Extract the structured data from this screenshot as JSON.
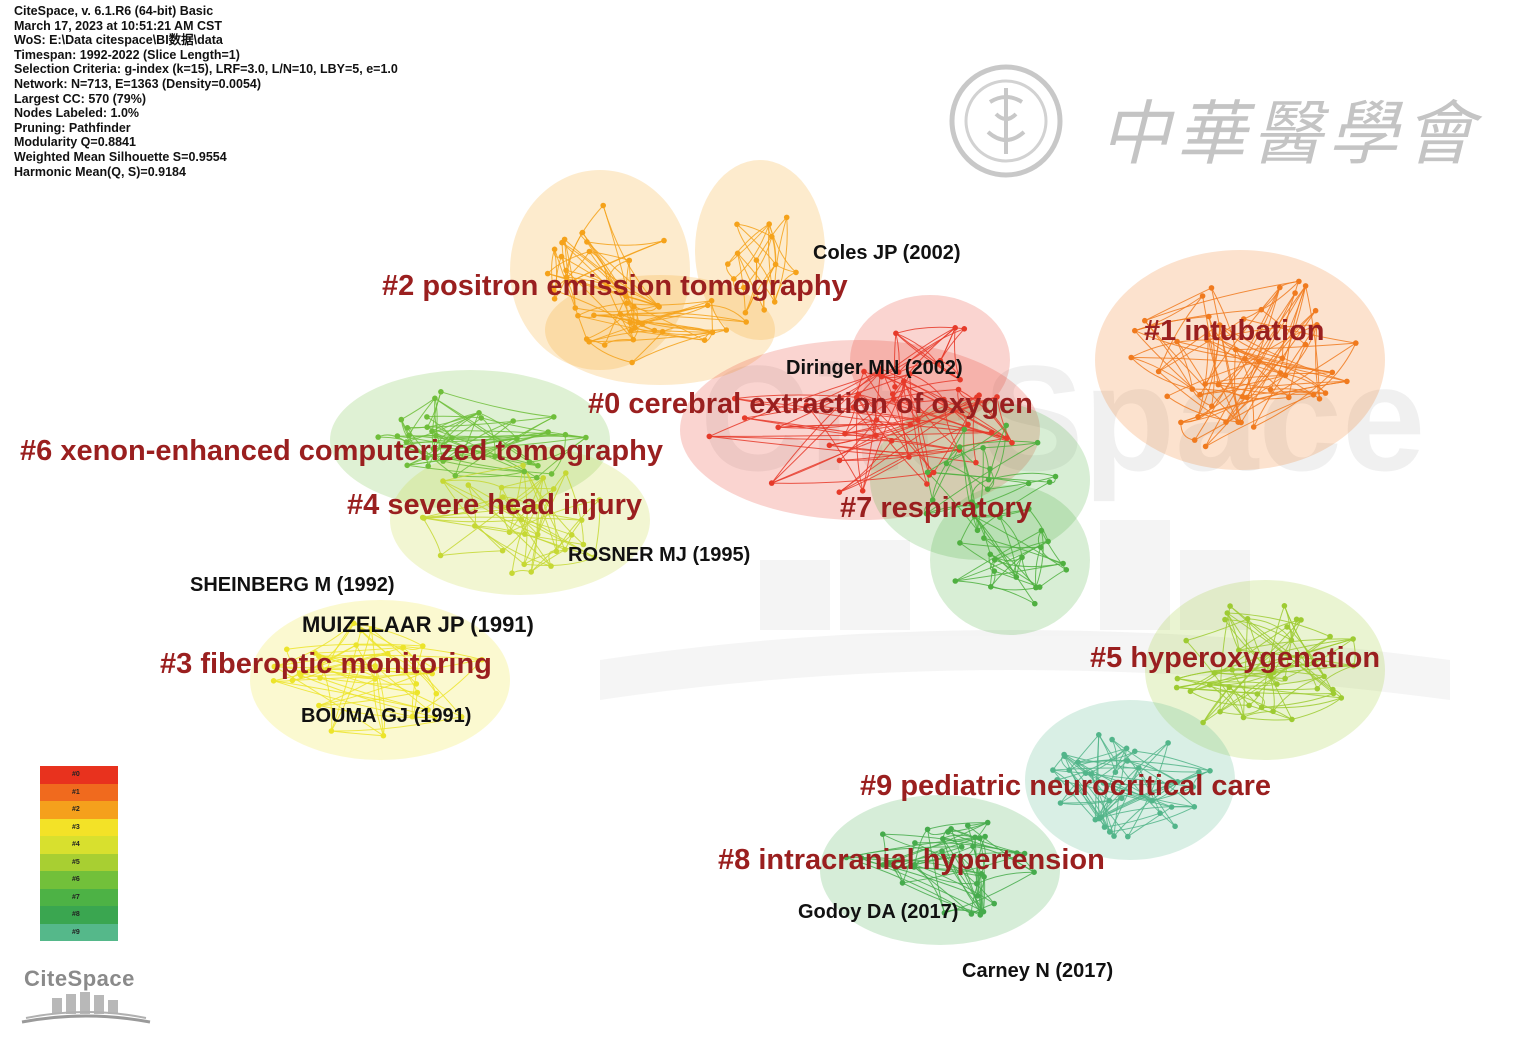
{
  "info_lines": [
    "CiteSpace, v. 6.1.R6 (64-bit) Basic",
    "March 17, 2023 at 10:51:21 AM CST",
    "WoS: E:\\Data citespace\\BI数据\\data",
    "Timespan: 1992-2022 (Slice Length=1)",
    "Selection Criteria: g-index (k=15), LRF=3.0, L/N=10, LBY=5, e=1.0",
    "Network: N=713, E=1363 (Density=0.0054)",
    "Largest CC: 570 (79%)",
    "Nodes Labeled: 1.0%",
    "Pruning: Pathfinder",
    "Modularity Q=0.8841",
    "Weighted Mean Silhouette S=0.9554",
    "Harmonic Mean(Q, S)=0.9184"
  ],
  "clusters": [
    {
      "id": "#0",
      "label": "#0 cerebral extraction of oxygen",
      "color": "#e63a2a"
    },
    {
      "id": "#1",
      "label": "#1 intubation",
      "color": "#f07a1e"
    },
    {
      "id": "#2",
      "label": "#2 positron emission tomography",
      "color": "#f5a21a"
    },
    {
      "id": "#3",
      "label": "#3 fiberoptic monitoring",
      "color": "#ece42a"
    },
    {
      "id": "#4",
      "label": "#4 severe head injury",
      "color": "#c6d834"
    },
    {
      "id": "#5",
      "label": "#5 hyperoxygenation",
      "color": "#9ecb32"
    },
    {
      "id": "#6",
      "label": "#6 xenon-enhanced computerized tomography",
      "color": "#6fbe3a"
    },
    {
      "id": "#7",
      "label": "#7 respiratory",
      "color": "#4fb040"
    },
    {
      "id": "#8",
      "label": "#8 intracranial hypertension",
      "color": "#46ab4c"
    },
    {
      "id": "#9",
      "label": "#9 pediatric neurocritical care",
      "color": "#52b58a"
    }
  ],
  "references": [
    "Coles JP (2002)",
    "Diringer MN (2002)",
    "ROSNER MJ (1995)",
    "SHEINBERG M (1992)",
    "MUIZELAAR JP (1991)",
    "BOUMA GJ (1991)",
    "Godoy DA (2017)",
    "Carney N (2017)"
  ],
  "legend": [
    "#0",
    "#1",
    "#2",
    "#3",
    "#4",
    "#5",
    "#6",
    "#7",
    "#8",
    "#9"
  ],
  "legend_colors": [
    "#e8321e",
    "#f06a1e",
    "#f5a01c",
    "#f3e227",
    "#d8e02e",
    "#a8cf32",
    "#72c03a",
    "#4db245",
    "#3aa650",
    "#55b88a"
  ],
  "watermark": {
    "logo_text": "CiteSpace",
    "society_text": "中華醫學會"
  }
}
